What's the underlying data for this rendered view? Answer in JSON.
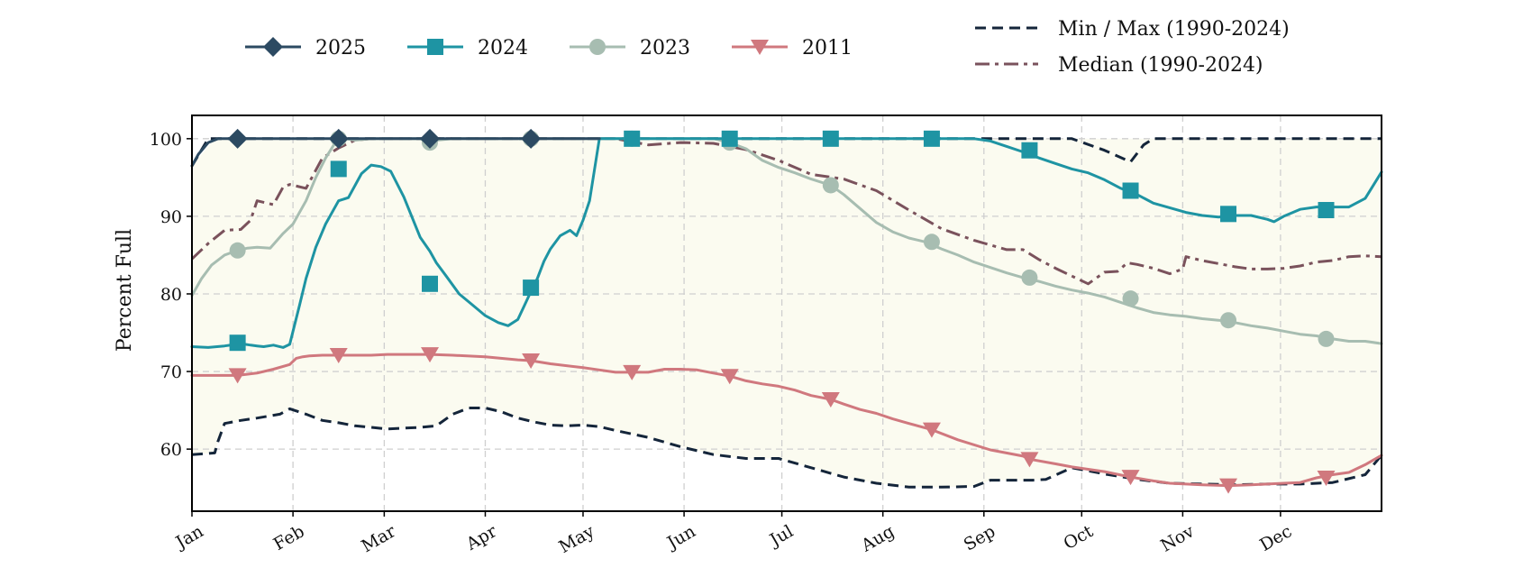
{
  "chart_data": {
    "type": "line",
    "title": "",
    "xlabel": "",
    "ylabel": "Percent Full",
    "ylim": [
      52,
      103
    ],
    "xlim": [
      0,
      365
    ],
    "grid": true,
    "legend_position": "top",
    "month_ticks": [
      {
        "label": "Jan",
        "day": 0
      },
      {
        "label": "Feb",
        "day": 31
      },
      {
        "label": "Mar",
        "day": 59
      },
      {
        "label": "Apr",
        "day": 90
      },
      {
        "label": "May",
        "day": 120
      },
      {
        "label": "Jun",
        "day": 151
      },
      {
        "label": "Jul",
        "day": 181
      },
      {
        "label": "Aug",
        "day": 212
      },
      {
        "label": "Sep",
        "day": 243
      },
      {
        "label": "Oct",
        "day": 273
      },
      {
        "label": "Nov",
        "day": 304
      },
      {
        "label": "Dec",
        "day": 334
      }
    ],
    "y_ticks": [
      60,
      70,
      80,
      90,
      100
    ],
    "band": {
      "name": "Min / Max (1990-2024)",
      "color": "#fbfbf0",
      "x": [
        0,
        7,
        8,
        10,
        15,
        20,
        27,
        30,
        35,
        40,
        45,
        50,
        55,
        60,
        65,
        70,
        75,
        80,
        85,
        90,
        95,
        100,
        105,
        110,
        115,
        120,
        125,
        130,
        140,
        150,
        160,
        170,
        180,
        190,
        200,
        210,
        220,
        230,
        240,
        245,
        250,
        258,
        262,
        270,
        280,
        290,
        300,
        310,
        320,
        330,
        340,
        350,
        360,
        365
      ],
      "min": [
        59.3,
        59.5,
        61,
        63.3,
        63.7,
        64,
        64.5,
        65.2,
        64.5,
        63.7,
        63.4,
        63,
        62.8,
        62.6,
        62.7,
        62.8,
        63,
        64.5,
        65.3,
        65.3,
        64.8,
        64,
        63.5,
        63.1,
        63,
        63.1,
        62.9,
        62.4,
        61.5,
        60.3,
        59.3,
        58.8,
        58.8,
        57.6,
        56.4,
        55.6,
        55.1,
        55.1,
        55.2,
        56,
        56,
        56,
        56.1,
        57.6,
        56.8,
        56.1,
        55.6,
        55.5,
        55.4,
        55.5,
        55.5,
        55.7,
        56.7,
        59.2
      ],
      "max": [
        96.5,
        100,
        100,
        100,
        100,
        100,
        100,
        100,
        100,
        100,
        100,
        100,
        100,
        100,
        100,
        100,
        100,
        100,
        100,
        100,
        100,
        100,
        100,
        100,
        100,
        100,
        100,
        100,
        100,
        100,
        100,
        100,
        100,
        100,
        100,
        100,
        100,
        100,
        100,
        100,
        100,
        100,
        100,
        100,
        100,
        100,
        100,
        100,
        100,
        100,
        100,
        100,
        100,
        100
      ]
    },
    "reference_lines": [
      {
        "name": "Min / Max (1990-2024)",
        "color": "#14253a",
        "dash": "dashed",
        "lines": [
          {
            "x": [
              0,
              7,
              8,
              10,
              15,
              20,
              27,
              30,
              35,
              40,
              45,
              50,
              55,
              60,
              65,
              70,
              75,
              80,
              85,
              90,
              95,
              100,
              105,
              110,
              115,
              120,
              125,
              130,
              140,
              150,
              160,
              170,
              180,
              190,
              200,
              210,
              220,
              230,
              240,
              245,
              250,
              258,
              262,
              270,
              280,
              290,
              300,
              310,
              320,
              330,
              340,
              350,
              360,
              365
            ],
            "y": [
              59.3,
              59.5,
              61,
              63.3,
              63.7,
              64,
              64.5,
              65.2,
              64.5,
              63.7,
              63.4,
              63,
              62.8,
              62.6,
              62.7,
              62.8,
              63,
              64.5,
              65.3,
              65.3,
              64.8,
              64,
              63.5,
              63.1,
              63,
              63.1,
              62.9,
              62.4,
              61.5,
              60.3,
              59.3,
              58.8,
              58.8,
              57.6,
              56.4,
              55.6,
              55.1,
              55.1,
              55.2,
              56,
              56,
              56,
              56.1,
              57.6,
              56.8,
              56.1,
              55.6,
              55.5,
              55.4,
              55.5,
              55.5,
              55.7,
              56.7,
              59.2
            ]
          },
          {
            "x": [
              0,
              5,
              10,
              270,
              280,
              288,
              292,
              295,
              300,
              320,
              340,
              365
            ],
            "y": [
              96.5,
              100,
              100,
              100,
              98.5,
              97,
              99.2,
              100,
              100,
              100,
              100,
              100
            ]
          }
        ]
      },
      {
        "name": "Median (1990-2024)",
        "color": "#7a525c",
        "dash": "dashdot",
        "x": [
          0,
          5,
          10,
          15,
          18,
          20,
          25,
          28,
          30,
          35,
          40,
          45,
          50,
          55,
          60,
          65,
          70,
          80,
          90,
          100,
          110,
          120,
          130,
          140,
          150,
          160,
          170,
          180,
          190,
          200,
          210,
          220,
          230,
          240,
          250,
          255,
          260,
          265,
          270,
          275,
          280,
          284,
          287,
          290,
          295,
          300,
          304,
          305,
          310,
          315,
          320,
          325,
          330,
          335,
          340,
          345,
          350,
          355,
          360,
          365
        ],
        "y": [
          84.5,
          86.5,
          88.2,
          88.3,
          89.5,
          92,
          91.5,
          93.8,
          94.1,
          93.6,
          97.5,
          98.8,
          99.8,
          100,
          100,
          100,
          100,
          100,
          100,
          100,
          100,
          100,
          100,
          99.2,
          99.5,
          99.4,
          98.6,
          97.2,
          95.4,
          94.8,
          93.3,
          90.8,
          88.4,
          86.9,
          85.7,
          85.7,
          84.4,
          83.3,
          82.3,
          81.3,
          82.8,
          82.9,
          84,
          83.8,
          83.3,
          82.6,
          83.2,
          84.8,
          84.3,
          83.9,
          83.5,
          83.2,
          83.2,
          83.3,
          83.6,
          84.1,
          84.3,
          84.8,
          84.9,
          84.8
        ]
      }
    ],
    "series": [
      {
        "name": "2025",
        "color": "#2c4a62",
        "marker": "diamond",
        "x": [
          0,
          2,
          5,
          8,
          10,
          14,
          20,
          45,
          74,
          105,
          120,
          125,
          365
        ],
        "y": [
          96.5,
          98,
          99.5,
          100,
          100,
          100,
          100,
          100,
          100,
          100,
          100,
          100,
          100
        ],
        "markers_x": [
          14,
          45,
          73,
          104
        ],
        "markers_y": [
          100,
          100,
          100,
          100
        ],
        "end_x": 125
      },
      {
        "name": "2024",
        "color": "#1e94a3",
        "marker": "square",
        "x": [
          0,
          5,
          10,
          15,
          18,
          20,
          22,
          25,
          28,
          30,
          33,
          35,
          38,
          41,
          45,
          48,
          52,
          55,
          58,
          61,
          65,
          70,
          73,
          75,
          78,
          82,
          86,
          90,
          94,
          97,
          100,
          102,
          104,
          106,
          108,
          110,
          113,
          116,
          118,
          120,
          122,
          125,
          135,
          155,
          200,
          240,
          245,
          250,
          255,
          260,
          265,
          270,
          275,
          280,
          285,
          290,
          295,
          300,
          305,
          310,
          315,
          320,
          325,
          330,
          332,
          335,
          340,
          345,
          350,
          355,
          360,
          365
        ],
        "y": [
          73.2,
          73.1,
          73.3,
          73.6,
          73.4,
          73.3,
          73.2,
          73.4,
          73.1,
          73.5,
          78.5,
          82,
          86,
          89,
          92,
          92.4,
          95.5,
          96.6,
          96.4,
          95.8,
          92.5,
          87.3,
          85.5,
          84,
          82.3,
          80,
          78.6,
          77.2,
          76.3,
          75.9,
          76.7,
          78.5,
          80.3,
          82,
          84.2,
          85.8,
          87.5,
          88.2,
          87.5,
          89.5,
          92,
          100,
          100,
          100,
          100,
          100,
          99.7,
          99,
          98.3,
          97.5,
          96.8,
          96.1,
          95.6,
          94.7,
          93.6,
          92.8,
          91.7,
          91.1,
          90.5,
          90.1,
          89.9,
          90.1,
          90.1,
          89.6,
          89.3,
          90,
          90.9,
          91.2,
          91.2,
          91.2,
          92.3,
          95.7
        ],
        "markers_x": [
          14,
          45,
          73,
          104,
          135,
          165,
          196,
          227,
          257,
          288,
          318,
          348
        ],
        "markers_y": [
          73.7,
          96.1,
          81.3,
          80.8,
          100,
          100,
          100,
          100,
          98.5,
          93.3,
          90.3,
          90.8
        ]
      },
      {
        "name": "2023",
        "color": "#a7bdb1",
        "marker": "circle",
        "x": [
          0,
          3,
          6,
          10,
          14,
          17,
          20,
          24,
          28,
          31,
          35,
          38,
          41,
          44,
          47,
          50,
          55,
          60,
          65,
          70,
          73,
          75,
          80,
          90,
          100,
          120,
          140,
          150,
          160,
          165,
          170,
          175,
          180,
          185,
          190,
          196,
          200,
          205,
          210,
          215,
          220,
          225,
          230,
          235,
          240,
          245,
          250,
          255,
          260,
          265,
          270,
          275,
          280,
          285,
          290,
          295,
          300,
          305,
          310,
          315,
          320,
          325,
          330,
          335,
          340,
          345,
          350,
          355,
          360,
          365
        ],
        "y": [
          79.8,
          82,
          83.7,
          85,
          85.6,
          85.9,
          86,
          85.9,
          87.8,
          89,
          92,
          95,
          97.5,
          99.5,
          100,
          99.8,
          100,
          100,
          100,
          100,
          99.4,
          99.8,
          100,
          100,
          100,
          100,
          100,
          100,
          100,
          99.5,
          98.7,
          97.2,
          96.3,
          95.6,
          94.8,
          94,
          92.8,
          91,
          89.2,
          88,
          87.2,
          86.7,
          85.8,
          85,
          84.1,
          83.4,
          82.7,
          82.1,
          81.6,
          81,
          80.5,
          80.1,
          79.6,
          78.9,
          78.2,
          77.6,
          77.3,
          77.1,
          76.8,
          76.6,
          76.3,
          75.9,
          75.6,
          75.2,
          74.8,
          74.6,
          74.2,
          73.9,
          73.9,
          73.6
        ],
        "markers_x": [
          14,
          45,
          73,
          104,
          135,
          165,
          196,
          227,
          257,
          288,
          318,
          348
        ],
        "markers_y": [
          85.6,
          100,
          99.5,
          100,
          100,
          99.5,
          94,
          86.7,
          82.1,
          79.4,
          76.6,
          74.2
        ]
      },
      {
        "name": "2011",
        "color": "#d0787e",
        "marker": "triangle",
        "x": [
          0,
          5,
          10,
          14,
          20,
          25,
          30,
          32,
          34,
          36,
          40,
          45,
          50,
          55,
          60,
          65,
          70,
          73,
          80,
          90,
          100,
          104,
          110,
          120,
          125,
          130,
          135,
          140,
          145,
          150,
          155,
          160,
          165,
          170,
          175,
          180,
          185,
          190,
          196,
          200,
          205,
          210,
          215,
          220,
          227,
          235,
          245,
          255,
          257,
          265,
          270,
          280,
          288,
          295,
          300,
          305,
          310,
          318,
          325,
          330,
          335,
          340,
          345,
          350,
          355,
          360,
          365
        ],
        "y": [
          69.5,
          69.5,
          69.5,
          69.5,
          69.8,
          70.3,
          70.9,
          71.7,
          71.9,
          72,
          72.1,
          72.1,
          72.1,
          72.1,
          72.2,
          72.2,
          72.2,
          72.2,
          72.1,
          71.9,
          71.5,
          71.4,
          71,
          70.5,
          70.2,
          69.9,
          69.9,
          69.9,
          70.3,
          70.3,
          70.2,
          69.8,
          69.4,
          68.8,
          68.4,
          68.1,
          67.6,
          66.9,
          66.4,
          65.8,
          65.1,
          64.6,
          63.9,
          63.3,
          62.5,
          61.2,
          59.9,
          59.1,
          58.7,
          58.1,
          57.7,
          57.1,
          56.4,
          55.9,
          55.6,
          55.5,
          55.4,
          55.3,
          55.4,
          55.5,
          55.6,
          55.7,
          56.3,
          56.7,
          57,
          58,
          59.2
        ],
        "markers_x": [
          14,
          45,
          73,
          104,
          135,
          165,
          196,
          227,
          257,
          288,
          318,
          348
        ],
        "markers_y": [
          69.5,
          72.1,
          72.2,
          71.4,
          69.9,
          69.4,
          66.4,
          62.5,
          58.7,
          56.4,
          55.3,
          56.3
        ]
      }
    ]
  }
}
